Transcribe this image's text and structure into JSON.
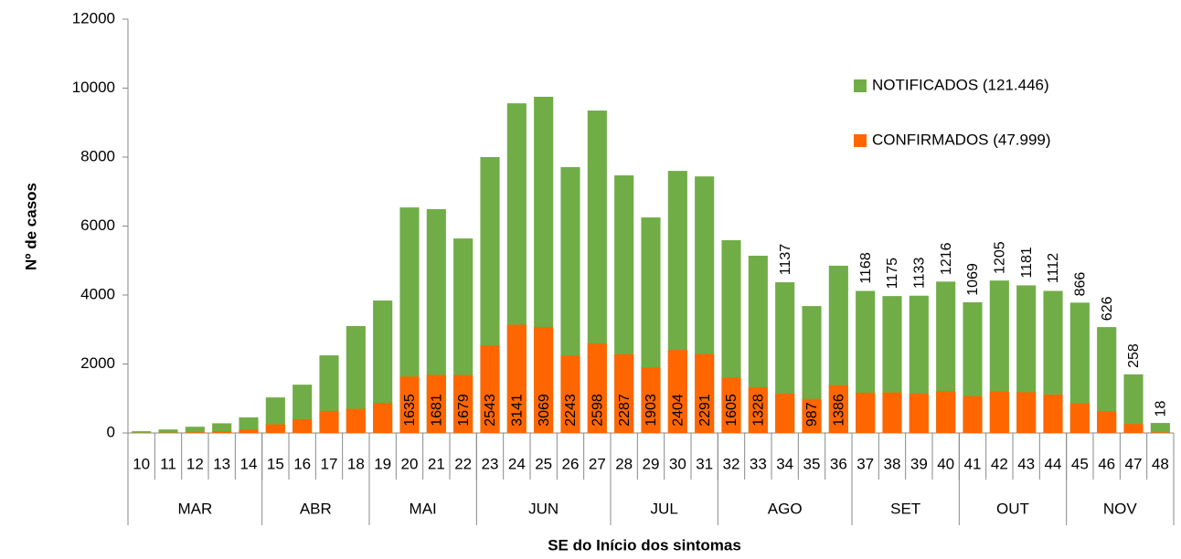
{
  "chart_data": {
    "type": "bar",
    "x_label": "SE do Início dos sintomas",
    "y_label": "Nº de casos",
    "categories": [
      "10",
      "11",
      "12",
      "13",
      "14",
      "15",
      "16",
      "17",
      "18",
      "19",
      "20",
      "21",
      "22",
      "23",
      "24",
      "25",
      "26",
      "27",
      "28",
      "29",
      "30",
      "31",
      "32",
      "33",
      "34",
      "35",
      "36",
      "37",
      "38",
      "39",
      "40",
      "41",
      "42",
      "43",
      "44",
      "45",
      "46",
      "47",
      "48"
    ],
    "groups": [
      {
        "label": "MAR",
        "span": 5
      },
      {
        "label": "ABR",
        "span": 4
      },
      {
        "label": "MAI",
        "span": 4
      },
      {
        "label": "JUN",
        "span": 5
      },
      {
        "label": "JUL",
        "span": 4
      },
      {
        "label": "AGO",
        "span": 5
      },
      {
        "label": "SET",
        "span": 4
      },
      {
        "label": "OUT",
        "span": 4
      },
      {
        "label": "NOV",
        "span": 4
      }
    ],
    "series": [
      {
        "name": "NOTIFICADOS (121.446)",
        "color": "#70ad47",
        "values": [
          50,
          100,
          180,
          280,
          450,
          1030,
          1400,
          2250,
          3100,
          3840,
          6540,
          6490,
          5640,
          8000,
          9560,
          9750,
          7710,
          9350,
          7470,
          6250,
          7600,
          7440,
          5590,
          5140,
          4370,
          3680,
          4850,
          4120,
          3970,
          3980,
          4390,
          3790,
          4420,
          4280,
          4120,
          3780,
          3070,
          1700,
          290
        ]
      },
      {
        "name": "CONFIRMADOS (47.999)",
        "color": "#ff6600",
        "values": [
          5,
          10,
          20,
          50,
          100,
          250,
          400,
          640,
          700,
          870,
          1635,
          1681,
          1679,
          2543,
          3141,
          3069,
          2243,
          2598,
          2287,
          1903,
          2404,
          2291,
          1605,
          1328,
          1137,
          987,
          1386,
          1168,
          1175,
          1133,
          1216,
          1069,
          1205,
          1181,
          1112,
          866,
          626,
          258,
          18
        ],
        "value_labels": [
          null,
          null,
          null,
          null,
          null,
          null,
          null,
          null,
          null,
          null,
          "1635",
          "1681",
          "1679",
          "2543",
          "3141",
          "3069",
          "2243",
          "2598",
          "2287",
          "1903",
          "2404",
          "2291",
          "1605",
          "1328",
          "1137",
          "987",
          "1386",
          "1168",
          "1175",
          "1133",
          "1216",
          "1069",
          "1205",
          "1181",
          "1112",
          "866",
          "626",
          "258",
          "18"
        ]
      }
    ],
    "ylim": [
      0,
      12000
    ],
    "yticks": [
      0,
      2000,
      4000,
      6000,
      8000,
      10000,
      12000
    ],
    "grid": false,
    "legend": "upper right"
  }
}
